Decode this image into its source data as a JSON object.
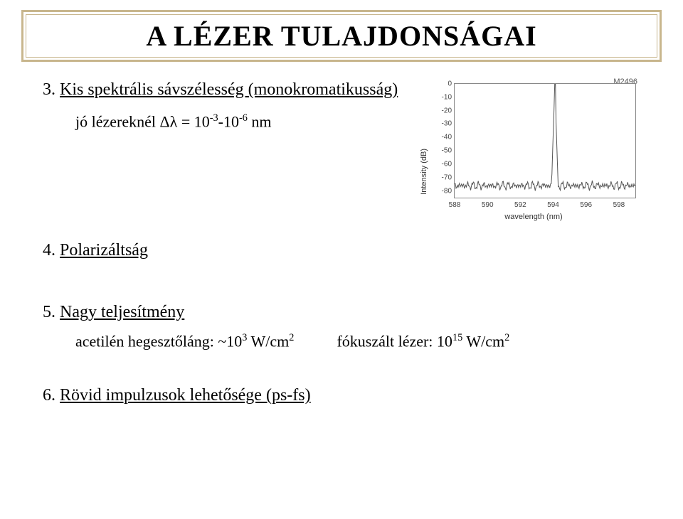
{
  "title": "A LÉZER TULAJDONSÁGAI",
  "section3": {
    "num": "3.",
    "label": "Kis spektrális sávszélesség (monokromatikusság)",
    "sub_prefix": "jó lézereknél ",
    "sub_expr": "Δλ = 10",
    "sub_exp1": "-3",
    "sub_mid": "-10",
    "sub_exp2": "-6",
    "sub_unit": " nm"
  },
  "section4": {
    "num": "4.",
    "label": "Polarizáltság"
  },
  "section5": {
    "num": "5.",
    "label": "Nagy teljesítmény",
    "perf1_prefix": "acetilén hegesztőláng: ~10",
    "perf1_exp": "3",
    "perf1_unit": " W/cm",
    "perf1_unit_exp": "2",
    "perf2_prefix": "fókuszált lézer: 10",
    "perf2_exp": "15",
    "perf2_unit": " W/cm",
    "perf2_unit_exp": "2"
  },
  "section6": {
    "num": "6.",
    "label": "Rövid impulzusok lehetősége (ps-fs)"
  },
  "chart": {
    "type": "line",
    "series_label": "M2496",
    "xlabel": "wavelength (nm)",
    "ylabel": "Intensity (dB)",
    "xlim": [
      588,
      599
    ],
    "ylim": [
      -85,
      0
    ],
    "xticks": [
      588,
      590,
      592,
      594,
      596,
      598
    ],
    "yticks": [
      0,
      -10,
      -20,
      -30,
      -40,
      -50,
      -60,
      -70,
      -80
    ],
    "peak_x": 594.1,
    "peak_y": 0,
    "noise_floor": -76,
    "noise_amp": 4,
    "line_color": "#555555",
    "border_color": "#888888",
    "background_color": "#ffffff",
    "tick_font_size": 10,
    "label_font_size": 11
  }
}
